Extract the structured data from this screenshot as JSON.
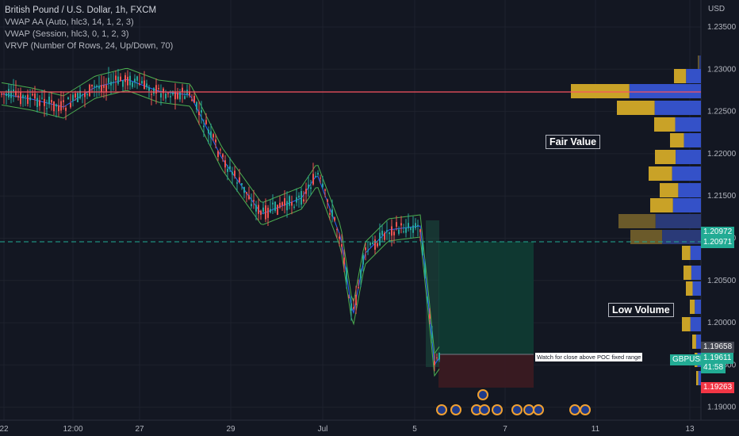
{
  "legend": {
    "title": "British Pound / U.S. Dollar, 1h, FXCM",
    "ind1": "VWAP AA (Auto, hlc3, 14, 1, 2, 3)",
    "ind2": "VWAP (Session, hlc3, 0, 1, 2, 3)",
    "ind3": "VRVP (Number Of Rows, 24, Up/Down, 70)"
  },
  "axis": {
    "currency": "USD",
    "price_ticks": [
      "1.23500",
      "1.23000",
      "1.22500",
      "1.22000",
      "1.21500",
      "1.21000",
      "1.20500",
      "1.20000",
      "1.19500",
      "1.19000"
    ],
    "time_ticks": [
      "22",
      "12:00",
      "27",
      "29",
      "Jul",
      "5",
      "7",
      "11",
      "13"
    ]
  },
  "price_tags": {
    "tag1": "1.20972",
    "tag2": "1.20971",
    "tag3": "1.19658",
    "symbol": "GBPUSD",
    "current": "1.19611",
    "countdown": "41:58",
    "tag4": "1.19263"
  },
  "annotations": {
    "fair_value": "Fair Value",
    "low_volume": "Low Volume",
    "watch_note": "Watch for close above POC fixed range"
  },
  "colors": {
    "background": "#131722",
    "up": "#26a69a",
    "down": "#ef5350",
    "poc_line": "#f7525f",
    "vp_up": "#3451c8",
    "vp_down": "#c9a227",
    "green_tag": "#22ab94",
    "red_tag": "#f23645"
  }
}
